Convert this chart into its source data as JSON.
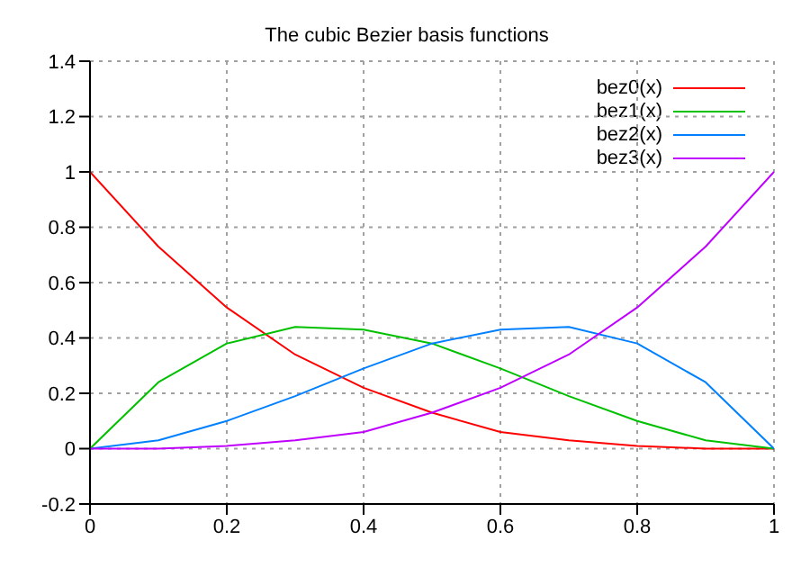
{
  "chart_data": {
    "type": "line",
    "title": "The cubic Bezier basis functions",
    "x": [
      0,
      0.1,
      0.2,
      0.3,
      0.4,
      0.5,
      0.6,
      0.7,
      0.8,
      0.9,
      1
    ],
    "series": [
      {
        "name": "bez0(x)",
        "color": "#ff0000",
        "values": [
          1,
          0.73,
          0.51,
          0.34,
          0.22,
          0.13,
          0.06,
          0.03,
          0.01,
          0,
          0
        ]
      },
      {
        "name": "bez1(x)",
        "color": "#00c000",
        "values": [
          0,
          0.24,
          0.38,
          0.44,
          0.43,
          0.38,
          0.29,
          0.19,
          0.1,
          0.03,
          0
        ]
      },
      {
        "name": "bez2(x)",
        "color": "#0080ff",
        "values": [
          0,
          0.03,
          0.1,
          0.19,
          0.29,
          0.38,
          0.43,
          0.44,
          0.38,
          0.24,
          0
        ]
      },
      {
        "name": "bez3(x)",
        "color": "#c000ff",
        "values": [
          0,
          0,
          0.01,
          0.03,
          0.06,
          0.13,
          0.22,
          0.34,
          0.51,
          0.73,
          1
        ]
      }
    ],
    "xlim": [
      0,
      1
    ],
    "xticks": [
      0,
      0.2,
      0.4,
      0.6,
      0.8,
      1
    ],
    "ylim": [
      -0.2,
      1.4
    ],
    "yticks": [
      -0.2,
      0,
      0.2,
      0.4,
      0.6,
      0.8,
      1,
      1.2,
      1.4
    ],
    "grid": true,
    "legend": "top right",
    "marker": "none",
    "line_style": "solid"
  }
}
